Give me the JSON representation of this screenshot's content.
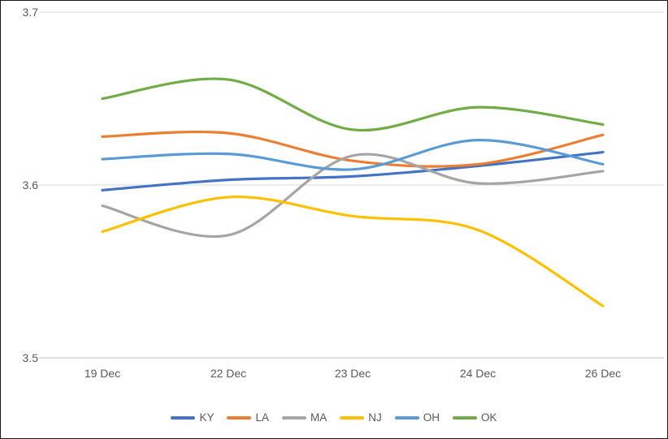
{
  "chart_data": {
    "type": "line",
    "title": "",
    "xlabel": "",
    "ylabel": "",
    "categories": [
      "19 Dec",
      "22 Dec",
      "23 Dec",
      "24 Dec",
      "26 Dec"
    ],
    "series": [
      {
        "name": "KY",
        "color": "#4472C4",
        "values": [
          3.597,
          3.603,
          3.605,
          3.611,
          3.619
        ]
      },
      {
        "name": "LA",
        "color": "#ED7D31",
        "values": [
          3.628,
          3.63,
          3.614,
          3.612,
          3.629
        ]
      },
      {
        "name": "MA",
        "color": "#A5A5A5",
        "values": [
          3.588,
          3.571,
          3.617,
          3.601,
          3.608
        ]
      },
      {
        "name": "NJ",
        "color": "#FFC000",
        "values": [
          3.573,
          3.593,
          3.582,
          3.574,
          3.53
        ]
      },
      {
        "name": "OH",
        "color": "#5B9BD5",
        "values": [
          3.615,
          3.618,
          3.609,
          3.626,
          3.612
        ]
      },
      {
        "name": "OK",
        "color": "#70AD47",
        "values": [
          3.65,
          3.661,
          3.632,
          3.645,
          3.635
        ]
      }
    ],
    "y_axis": {
      "min": 3.5,
      "max": 3.7,
      "tick_labels": [
        "3.7",
        "3.6",
        "3.5"
      ],
      "tick_values": [
        3.7,
        3.6,
        3.5
      ]
    },
    "x_axis": {
      "tick_labels": [
        "19 Dec",
        "22 Dec",
        "23 Dec",
        "24 Dec",
        "26 Dec"
      ]
    },
    "legend_position": "bottom",
    "grid": "horizontal",
    "line_style": "smooth",
    "colors": {
      "gridline": "#D9D9D9",
      "axis_line": "#BFBFBF",
      "tick_label": "#595959"
    }
  }
}
